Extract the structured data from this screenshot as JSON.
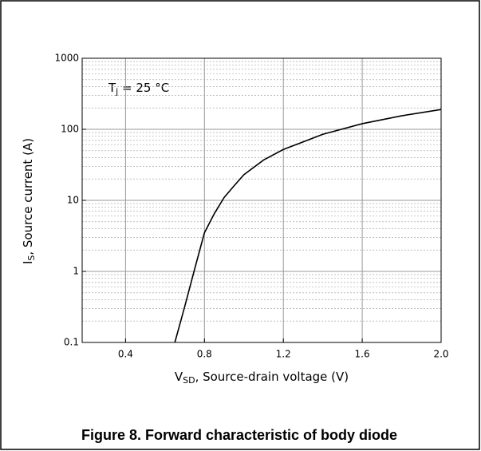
{
  "chart_data": {
    "type": "line",
    "caption": "Figure 8. Forward characteristic of body diode",
    "xlabel": {
      "main": "V",
      "sub": "SD",
      "rest": ", Source-drain voltage (V)"
    },
    "ylabel": {
      "main": "I",
      "sub": "S",
      "rest": ", Source current (A)"
    },
    "annotation": {
      "main": "T",
      "sub": "j",
      "rest": " = 25 °C"
    },
    "x": [
      0.65,
      0.7,
      0.75,
      0.8,
      0.85,
      0.9,
      0.95,
      1.0,
      1.1,
      1.2,
      1.4,
      1.6,
      1.8,
      2.0
    ],
    "series": [
      {
        "color": "#000000",
        "values": [
          0.1,
          0.32,
          1.07,
          3.5,
          6.5,
          11,
          16,
          23,
          37,
          52,
          85,
          120,
          155,
          190
        ]
      }
    ],
    "xlim": [
      0.18,
      2.0
    ],
    "xticks": [
      0.4,
      0.8,
      1.2,
      1.6,
      {
        "value": 2,
        "label": "2.0"
      }
    ],
    "ylim": [
      0.1,
      1000
    ],
    "yticks": [
      0.1,
      1,
      10,
      100,
      1000
    ],
    "ylog": true,
    "grid": true
  }
}
